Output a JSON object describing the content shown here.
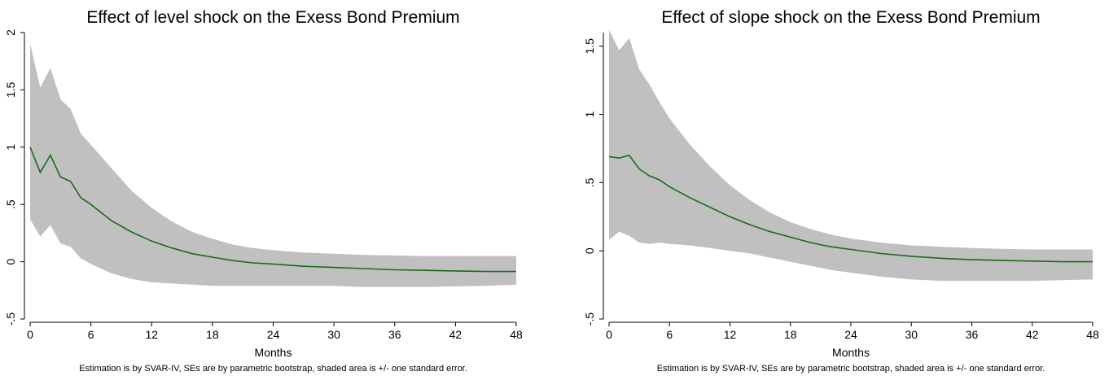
{
  "chart_data": [
    {
      "type": "area",
      "title": "Effect of level shock on the Exess Bond Premium",
      "xlabel": "Months",
      "ylabel": "",
      "note": "Estimation is by SVAR-IV, SEs are by parametric bootstrap, shaded area is +/- one standard error.",
      "xlim": [
        0,
        48
      ],
      "ylim": [
        -0.5,
        2.0
      ],
      "xticks": [
        0,
        6,
        12,
        18,
        24,
        30,
        36,
        42,
        48
      ],
      "xtick_labels": [
        "0",
        "6",
        "12",
        "18",
        "24",
        "30",
        "36",
        "42",
        "48"
      ],
      "yticks": [
        -0.5,
        0,
        0.5,
        1,
        1.5,
        2
      ],
      "ytick_labels": [
        "-.5",
        "0",
        ".5",
        "1",
        "1.5",
        "2"
      ],
      "band_color": "#c0c0c0",
      "line_color": "#1a6b1a",
      "x": [
        0,
        1,
        2,
        3,
        4,
        5,
        6,
        8,
        10,
        12,
        14,
        16,
        18,
        20,
        22,
        24,
        27,
        30,
        33,
        36,
        39,
        42,
        45,
        48
      ],
      "series": [
        {
          "values": [
            1.0,
            0.78,
            0.93,
            0.74,
            0.7,
            0.56,
            0.5,
            0.36,
            0.26,
            0.18,
            0.12,
            0.07,
            0.04,
            0.01,
            -0.01,
            -0.02,
            -0.04,
            -0.05,
            -0.06,
            -0.07,
            -0.075,
            -0.08,
            -0.085,
            -0.085
          ],
          "upper": [
            1.9,
            1.52,
            1.69,
            1.42,
            1.33,
            1.12,
            1.02,
            0.82,
            0.62,
            0.47,
            0.35,
            0.26,
            0.2,
            0.15,
            0.12,
            0.1,
            0.08,
            0.07,
            0.06,
            0.055,
            0.05,
            0.05,
            0.05,
            0.05
          ],
          "lower": [
            0.37,
            0.22,
            0.32,
            0.16,
            0.13,
            0.03,
            -0.02,
            -0.1,
            -0.15,
            -0.18,
            -0.19,
            -0.2,
            -0.21,
            -0.21,
            -0.21,
            -0.21,
            -0.21,
            -0.21,
            -0.22,
            -0.22,
            -0.22,
            -0.215,
            -0.21,
            -0.2
          ]
        }
      ]
    },
    {
      "type": "area",
      "title": "Effect of slope shock on the Exess Bond Premium",
      "xlabel": "Months",
      "ylabel": "",
      "note": "Estimation is by SVAR-IV, SEs are by parametric bootstrap, shaded area is +/- one standard error.",
      "xlim": [
        0,
        48
      ],
      "ylim": [
        -0.5,
        1.6
      ],
      "xticks": [
        0,
        6,
        12,
        18,
        24,
        30,
        36,
        42,
        48
      ],
      "xtick_labels": [
        "0",
        "6",
        "12",
        "18",
        "24",
        "30",
        "36",
        "42",
        "48"
      ],
      "yticks": [
        -0.5,
        0,
        0.5,
        1,
        1.5
      ],
      "ytick_labels": [
        "-.5",
        "0",
        ".5",
        "1",
        "1.5"
      ],
      "band_color": "#c0c0c0",
      "line_color": "#1a6b1a",
      "x": [
        0,
        1,
        2,
        3,
        4,
        5,
        6,
        8,
        10,
        12,
        14,
        16,
        18,
        20,
        22,
        24,
        27,
        30,
        33,
        36,
        39,
        42,
        45,
        48
      ],
      "series": [
        {
          "values": [
            0.69,
            0.68,
            0.7,
            0.6,
            0.55,
            0.52,
            0.47,
            0.39,
            0.32,
            0.25,
            0.19,
            0.14,
            0.1,
            0.06,
            0.03,
            0.01,
            -0.02,
            -0.04,
            -0.055,
            -0.065,
            -0.07,
            -0.075,
            -0.08,
            -0.08
          ],
          "upper": [
            1.62,
            1.47,
            1.56,
            1.33,
            1.22,
            1.09,
            0.97,
            0.78,
            0.62,
            0.48,
            0.37,
            0.28,
            0.21,
            0.16,
            0.12,
            0.09,
            0.06,
            0.04,
            0.03,
            0.02,
            0.015,
            0.01,
            0.01,
            0.01
          ],
          "lower": [
            0.08,
            0.14,
            0.11,
            0.06,
            0.05,
            0.06,
            0.05,
            0.04,
            0.02,
            0.0,
            -0.02,
            -0.05,
            -0.08,
            -0.11,
            -0.14,
            -0.16,
            -0.19,
            -0.21,
            -0.22,
            -0.22,
            -0.22,
            -0.22,
            -0.215,
            -0.21
          ]
        }
      ]
    }
  ]
}
